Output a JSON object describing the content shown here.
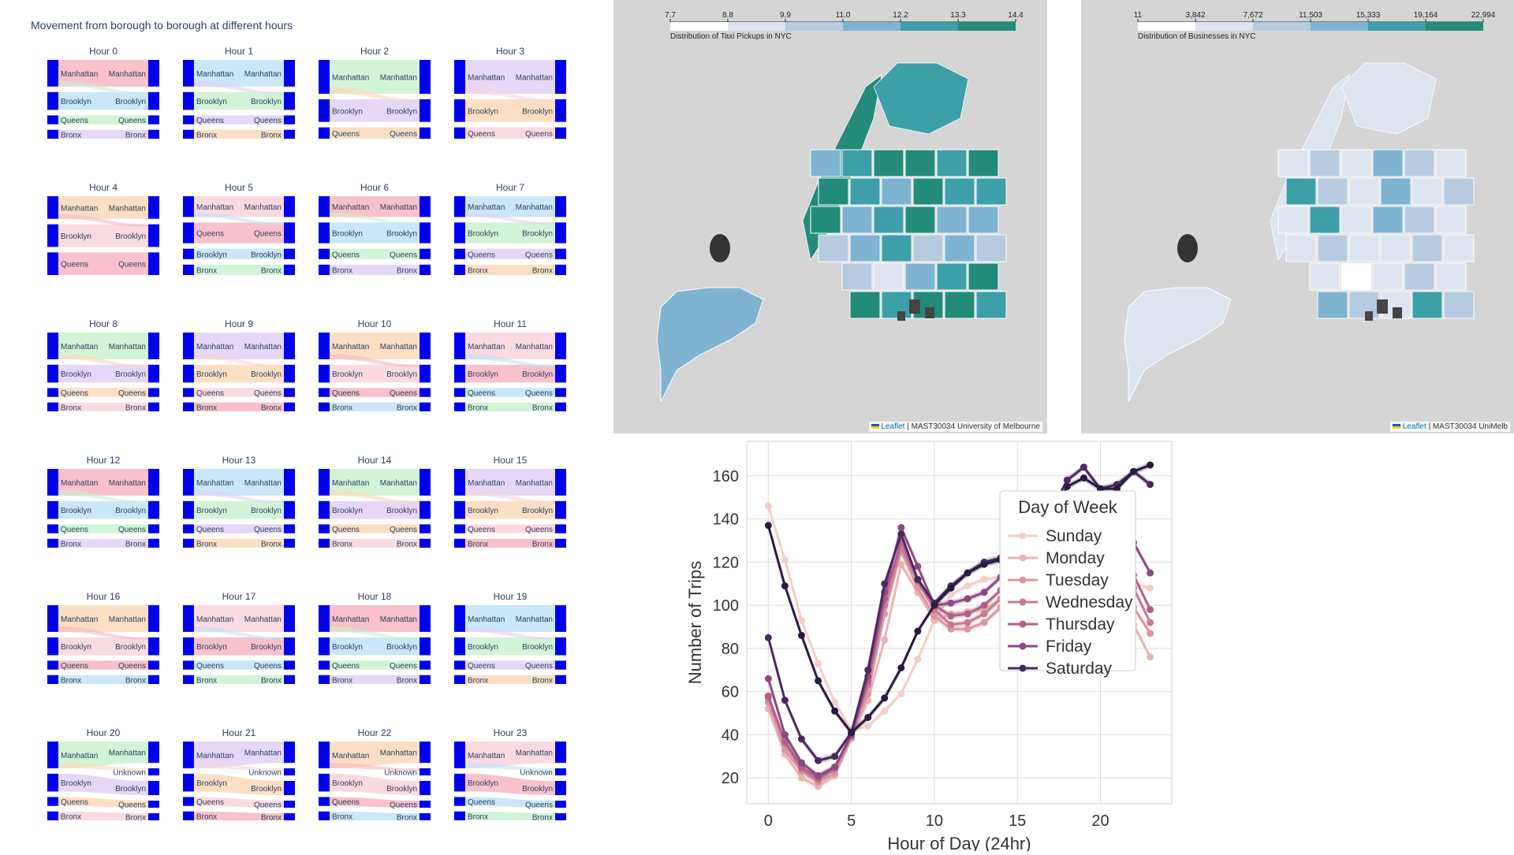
{
  "sankey": {
    "title": "Movement from borough to borough at different hours",
    "panels": [
      {
        "hour": "Hour 0",
        "left": [
          "Manhattan",
          "Brooklyn",
          "Queens",
          "Bronx"
        ],
        "right": [
          "Manhattan",
          "Brooklyn",
          "Queens",
          "Bronx"
        ],
        "left_w": [
          3,
          2,
          1,
          1
        ],
        "right_w": [
          3,
          2,
          1,
          1
        ]
      },
      {
        "hour": "Hour 1",
        "left": [
          "Manhattan",
          "Brooklyn",
          "Queens",
          "Bronx"
        ],
        "right": [
          "Manhattan",
          "Brooklyn",
          "Queens",
          "Bronx"
        ],
        "left_w": [
          3,
          2,
          1,
          1
        ],
        "right_w": [
          3,
          2,
          1,
          1
        ]
      },
      {
        "hour": "Hour 2",
        "left": [
          "Manhattan",
          "Brooklyn",
          "Queens"
        ],
        "right": [
          "Manhattan",
          "Brooklyn",
          "Queens"
        ],
        "left_w": [
          3,
          2,
          1
        ],
        "right_w": [
          3,
          2,
          1
        ]
      },
      {
        "hour": "Hour 3",
        "left": [
          "Manhattan",
          "Brooklyn",
          "Queens"
        ],
        "right": [
          "Manhattan",
          "Brooklyn",
          "Queens"
        ],
        "left_w": [
          3,
          2,
          1
        ],
        "right_w": [
          3,
          2,
          1
        ]
      },
      {
        "hour": "Hour 4",
        "left": [
          "Manhattan",
          "Brooklyn",
          "Queens"
        ],
        "right": [
          "Manhattan",
          "Brooklyn",
          "Queens"
        ],
        "left_w": [
          2,
          2,
          2
        ],
        "right_w": [
          2,
          2,
          2
        ]
      },
      {
        "hour": "Hour 5",
        "left": [
          "Manhattan",
          "Queens",
          "Brooklyn",
          "Bronx"
        ],
        "right": [
          "Manhattan",
          "Queens",
          "Brooklyn",
          "Bronx"
        ],
        "left_w": [
          2,
          2,
          1,
          1
        ],
        "right_w": [
          2,
          2,
          1,
          1
        ]
      },
      {
        "hour": "Hour 6",
        "left": [
          "Manhattan",
          "Brooklyn",
          "Queens",
          "Bronx"
        ],
        "right": [
          "Manhattan",
          "Brooklyn",
          "Queens",
          "Bronx"
        ],
        "left_w": [
          2,
          2,
          1,
          1
        ],
        "right_w": [
          2,
          2,
          1,
          1
        ]
      },
      {
        "hour": "Hour 7",
        "left": [
          "Manhattan",
          "Brooklyn",
          "Queens",
          "Bronx"
        ],
        "right": [
          "Manhattan",
          "Brooklyn",
          "Queens",
          "Bronx"
        ],
        "left_w": [
          2,
          2,
          1,
          1
        ],
        "right_w": [
          2,
          2,
          1,
          1
        ]
      },
      {
        "hour": "Hour 8",
        "left": [
          "Manhattan",
          "Brooklyn",
          "Queens",
          "Bronx"
        ],
        "right": [
          "Manhattan",
          "Brooklyn",
          "Queens",
          "Bronx"
        ],
        "left_w": [
          3,
          2,
          1,
          1
        ],
        "right_w": [
          3,
          2,
          1,
          1
        ]
      },
      {
        "hour": "Hour 9",
        "left": [
          "Manhattan",
          "Brooklyn",
          "Queens",
          "Bronx"
        ],
        "right": [
          "Manhattan",
          "Brooklyn",
          "Queens",
          "Bronx"
        ],
        "left_w": [
          3,
          2,
          1,
          1
        ],
        "right_w": [
          3,
          2,
          1,
          1
        ]
      },
      {
        "hour": "Hour 10",
        "left": [
          "Manhattan",
          "Brooklyn",
          "Queens",
          "Bronx"
        ],
        "right": [
          "Manhattan",
          "Brooklyn",
          "Queens",
          "Bronx"
        ],
        "left_w": [
          3,
          2,
          1,
          1
        ],
        "right_w": [
          3,
          2,
          1,
          1
        ]
      },
      {
        "hour": "Hour 11",
        "left": [
          "Manhattan",
          "Brooklyn",
          "Queens",
          "Bronx"
        ],
        "right": [
          "Manhattan",
          "Brooklyn",
          "Queens",
          "Bronx"
        ],
        "left_w": [
          3,
          2,
          1,
          1
        ],
        "right_w": [
          3,
          2,
          1,
          1
        ]
      },
      {
        "hour": "Hour 12",
        "left": [
          "Manhattan",
          "Brooklyn",
          "Queens",
          "Bronx"
        ],
        "right": [
          "Manhattan",
          "Brooklyn",
          "Queens",
          "Bronx"
        ],
        "left_w": [
          3,
          2,
          1,
          1
        ],
        "right_w": [
          3,
          2,
          1,
          1
        ]
      },
      {
        "hour": "Hour 13",
        "left": [
          "Manhattan",
          "Brooklyn",
          "Queens",
          "Bronx"
        ],
        "right": [
          "Manhattan",
          "Brooklyn",
          "Queens",
          "Bronx"
        ],
        "left_w": [
          3,
          2,
          1,
          1
        ],
        "right_w": [
          3,
          2,
          1,
          1
        ]
      },
      {
        "hour": "Hour 14",
        "left": [
          "Manhattan",
          "Brooklyn",
          "Queens",
          "Bronx"
        ],
        "right": [
          "Manhattan",
          "Brooklyn",
          "Queens",
          "Bronx"
        ],
        "left_w": [
          3,
          2,
          1,
          1
        ],
        "right_w": [
          3,
          2,
          1,
          1
        ]
      },
      {
        "hour": "Hour 15",
        "left": [
          "Manhattan",
          "Brooklyn",
          "Queens",
          "Bronx"
        ],
        "right": [
          "Manhattan",
          "Brooklyn",
          "Queens",
          "Bronx"
        ],
        "left_w": [
          3,
          2,
          1,
          1
        ],
        "right_w": [
          3,
          2,
          1,
          1
        ]
      },
      {
        "hour": "Hour 16",
        "left": [
          "Manhattan",
          "Brooklyn",
          "Queens",
          "Bronx"
        ],
        "right": [
          "Manhattan",
          "Brooklyn",
          "Queens",
          "Bronx"
        ],
        "left_w": [
          3,
          2,
          1,
          1
        ],
        "right_w": [
          3,
          2,
          1,
          1
        ]
      },
      {
        "hour": "Hour 17",
        "left": [
          "Manhattan",
          "Brooklyn",
          "Queens",
          "Bronx"
        ],
        "right": [
          "Manhattan",
          "Brooklyn",
          "Queens",
          "Bronx"
        ],
        "left_w": [
          3,
          2,
          1,
          1
        ],
        "right_w": [
          3,
          2,
          1,
          1
        ]
      },
      {
        "hour": "Hour 18",
        "left": [
          "Manhattan",
          "Brooklyn",
          "Queens",
          "Bronx"
        ],
        "right": [
          "Manhattan",
          "Brooklyn",
          "Queens",
          "Bronx"
        ],
        "left_w": [
          3,
          2,
          1,
          1
        ],
        "right_w": [
          3,
          2,
          1,
          1
        ]
      },
      {
        "hour": "Hour 19",
        "left": [
          "Manhattan",
          "Brooklyn",
          "Queens",
          "Bronx"
        ],
        "right": [
          "Manhattan",
          "Brooklyn",
          "Queens",
          "Bronx"
        ],
        "left_w": [
          3,
          2,
          1,
          1
        ],
        "right_w": [
          3,
          2,
          1,
          1
        ]
      },
      {
        "hour": "Hour 20",
        "left": [
          "Manhattan",
          "Brooklyn",
          "Queens",
          "Bronx"
        ],
        "right": [
          "Manhattan",
          "Unknown",
          "Brooklyn",
          "Queens",
          "Bronx"
        ],
        "left_w": [
          3,
          2,
          1,
          1
        ],
        "right_w": [
          3,
          1,
          2,
          1,
          1
        ]
      },
      {
        "hour": "Hour 21",
        "left": [
          "Manhattan",
          "Brooklyn",
          "Queens",
          "Bronx"
        ],
        "right": [
          "Manhattan",
          "Unknown",
          "Brooklyn",
          "Queens",
          "Bronx"
        ],
        "left_w": [
          3,
          2,
          1,
          1
        ],
        "right_w": [
          3,
          1,
          2,
          1,
          1
        ]
      },
      {
        "hour": "Hour 22",
        "left": [
          "Manhattan",
          "Brooklyn",
          "Queens",
          "Bronx"
        ],
        "right": [
          "Manhattan",
          "Unknown",
          "Brooklyn",
          "Queens",
          "Bronx"
        ],
        "left_w": [
          3,
          2,
          1,
          1
        ],
        "right_w": [
          3,
          1,
          2,
          1,
          1
        ]
      },
      {
        "hour": "Hour 23",
        "left": [
          "Manhattan",
          "Brooklyn",
          "Queens",
          "Bronx"
        ],
        "right": [
          "Manhattan",
          "Unknown",
          "Brooklyn",
          "Queens",
          "Bronx"
        ],
        "left_w": [
          3,
          2,
          1,
          1
        ],
        "right_w": [
          3,
          1,
          2,
          1,
          1
        ]
      }
    ],
    "link_colors": [
      "#f7b6c2",
      "#bfe3f7",
      "#c9f2cf",
      "#e2d0f5",
      "#fcd9b8",
      "#f9d4dc"
    ],
    "node_color": "#0000ee"
  },
  "maps": [
    {
      "legend_title": "Distribution of Taxi Pickups in NYC",
      "ticks": [
        "7.7",
        "8.8",
        "9.9",
        "11.0",
        "12.2",
        "13.3",
        "14.4"
      ],
      "colors": [
        "#ffffff",
        "#dde4ef",
        "#b6cbe0",
        "#7eb3d1",
        "#3d9fa8",
        "#238b7a"
      ],
      "attribution_link": "Leaflet",
      "attribution_text": "| MAST30034 University of Melbourne"
    },
    {
      "legend_title": "Distribution of Businesses in NYC",
      "ticks": [
        "11",
        "3,842",
        "7,672",
        "11,503",
        "15,333",
        "19,164",
        "22,994"
      ],
      "colors": [
        "#ffffff",
        "#dde4ef",
        "#b6cbe0",
        "#7eb3d1",
        "#3d9fa8",
        "#238b7a"
      ],
      "attribution_link": "Leaflet",
      "attribution_text": "| MAST30034 UniMelb"
    }
  ],
  "chart_data": {
    "type": "line",
    "xlabel": "Hour of Day (24hr)",
    "ylabel": "Number of Trips",
    "xlim": [
      -1.3,
      24.3
    ],
    "ylim": [
      8,
      176
    ],
    "xticks": [
      0,
      5,
      10,
      15,
      20
    ],
    "yticks": [
      20,
      40,
      60,
      80,
      100,
      120,
      140,
      160
    ],
    "grid": true,
    "legend_title": "Day of Week",
    "legend_position": "right",
    "x": [
      0,
      1,
      2,
      3,
      4,
      5,
      6,
      7,
      8,
      9,
      10,
      11,
      12,
      13,
      14,
      15,
      16,
      17,
      18,
      19,
      20,
      21,
      22,
      23
    ],
    "series": [
      {
        "name": "Sunday",
        "color": "#f2cfc6",
        "values": [
          146,
          121,
          93,
          73,
          55,
          42,
          44,
          51,
          59,
          75,
          93,
          105,
          109,
          112,
          113,
          114,
          115,
          120,
          127,
          124,
          115,
          111,
          110,
          108
        ]
      },
      {
        "name": "Monday",
        "color": "#eab3b0",
        "values": [
          52,
          31,
          20,
          16,
          21,
          38,
          56,
          84,
          119,
          106,
          93,
          96,
          97,
          98,
          103,
          105,
          106,
          113,
          120,
          111,
          100,
          96,
          91,
          76
        ]
      },
      {
        "name": "Tuesday",
        "color": "#dd95a0",
        "values": [
          55,
          33,
          23,
          18,
          22,
          39,
          59,
          96,
          125,
          108,
          95,
          89,
          89,
          92,
          99,
          103,
          105,
          116,
          126,
          117,
          107,
          104,
          99,
          87
        ]
      },
      {
        "name": "Wednesday",
        "color": "#c97a95",
        "values": [
          57,
          36,
          24,
          19,
          24,
          39,
          63,
          100,
          127,
          111,
          98,
          91,
          92,
          96,
          103,
          107,
          110,
          122,
          131,
          122,
          113,
          110,
          108,
          92
        ]
      },
      {
        "name": "Thursday",
        "color": "#b1608c",
        "values": [
          58,
          37,
          25,
          20,
          25,
          40,
          65,
          103,
          130,
          112,
          100,
          95,
          96,
          100,
          107,
          111,
          114,
          126,
          136,
          127,
          117,
          114,
          114,
          98
        ]
      },
      {
        "name": "Friday",
        "color": "#8a4a80",
        "values": [
          66,
          40,
          27,
          21,
          25,
          40,
          67,
          106,
          136,
          118,
          100,
          101,
          103,
          106,
          113,
          119,
          124,
          135,
          143,
          136,
          127,
          126,
          129,
          115
        ]
      },
      {
        "name": "Saturday",
        "color": "#4a2a5e",
        "values": [
          85,
          56,
          38,
          28,
          30,
          41,
          70,
          110,
          133,
          112,
          101,
          109,
          115,
          120,
          122,
          126,
          131,
          143,
          158,
          164,
          154,
          156,
          162,
          156
        ]
      },
      {
        "name": "",
        "color": "#2b1a40",
        "values": [
          137,
          109,
          86,
          65,
          51,
          41,
          48,
          57,
          71,
          88,
          100,
          108,
          115,
          119,
          121,
          124,
          129,
          141,
          155,
          159,
          154,
          154,
          162,
          165
        ]
      }
    ]
  }
}
